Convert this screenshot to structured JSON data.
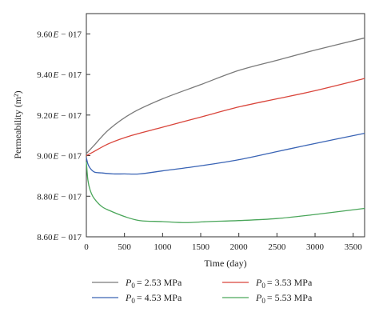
{
  "chart_data": {
    "type": "line",
    "xlabel": "Time (day)",
    "ylabel": "Permeability (m²)",
    "xlim": [
      0,
      3650
    ],
    "ylim": [
      8.6,
      9.7
    ],
    "x_ticks": [
      0,
      500,
      1000,
      1500,
      2000,
      2500,
      3000,
      3500
    ],
    "y_ticks": [
      {
        "value": 8.6,
        "mantissa": "8.60",
        "exp": "017"
      },
      {
        "value": 8.8,
        "mantissa": "8.80",
        "exp": "017"
      },
      {
        "value": 9.0,
        "mantissa": "9.00",
        "exp": "017"
      },
      {
        "value": 9.2,
        "mantissa": "9.20",
        "exp": "017"
      },
      {
        "value": 9.4,
        "mantissa": "9.40",
        "exp": "017"
      },
      {
        "value": 9.6,
        "mantissa": "9.60",
        "exp": "017"
      }
    ],
    "y_exponent_letter": "E",
    "y_exponent_sign": "−",
    "legend_position": "bottom",
    "grid": false,
    "series": [
      {
        "name": "2.53 MPa",
        "legend_sym": "P",
        "legend_sub": "0",
        "color": "#7a7a7a",
        "x": [
          0,
          100,
          300,
          600,
          1000,
          1500,
          2000,
          2500,
          3000,
          3650
        ],
        "y": [
          9.01,
          9.05,
          9.13,
          9.21,
          9.28,
          9.35,
          9.42,
          9.47,
          9.52,
          9.58
        ]
      },
      {
        "name": "3.53 MPa",
        "legend_sym": "P",
        "legend_sub": "0",
        "color": "#d9453b",
        "x": [
          0,
          100,
          300,
          600,
          1000,
          1500,
          2000,
          2500,
          3000,
          3650
        ],
        "y": [
          9.0,
          9.02,
          9.06,
          9.1,
          9.14,
          9.19,
          9.24,
          9.28,
          9.32,
          9.38
        ]
      },
      {
        "name": "4.53 MPa",
        "legend_sym": "P",
        "legend_sub": "0",
        "color": "#3a64b5",
        "x": [
          0,
          30,
          100,
          200,
          350,
          500,
          700,
          1000,
          1500,
          2000,
          2500,
          3000,
          3650
        ],
        "y": [
          8.99,
          8.95,
          8.92,
          8.915,
          8.91,
          8.91,
          8.91,
          8.925,
          8.95,
          8.98,
          9.02,
          9.06,
          9.11
        ]
      },
      {
        "name": "5.53 MPa",
        "legend_sym": "P",
        "legend_sub": "0",
        "color": "#4aa65a",
        "x": [
          0,
          20,
          50,
          100,
          200,
          300,
          500,
          700,
          1000,
          1300,
          1600,
          2000,
          2500,
          3000,
          3650
        ],
        "y": [
          8.97,
          8.88,
          8.83,
          8.79,
          8.75,
          8.73,
          8.7,
          8.68,
          8.675,
          8.67,
          8.675,
          8.68,
          8.69,
          8.71,
          8.74
        ]
      }
    ]
  }
}
